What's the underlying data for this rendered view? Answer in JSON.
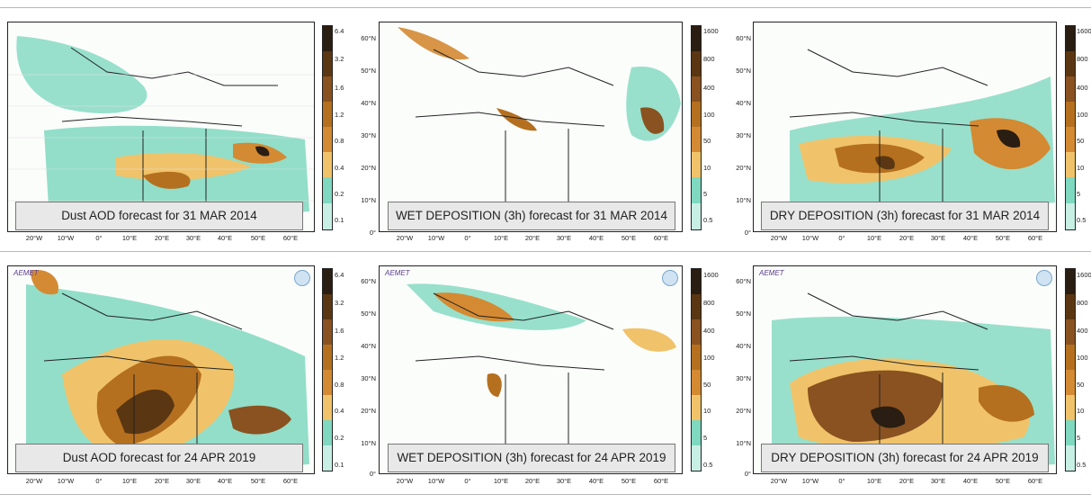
{
  "captions": {
    "p1": "Dust AOD forecast for 31 MAR 2014",
    "p2": "WET DEPOSITION (3h) forecast for 31 MAR 2014",
    "p3": "DRY DEPOSITION (3h) forecast for 31 MAR 2014",
    "p4": "Dust AOD forecast for 24 APR 2019",
    "p5": "WET DEPOSITION (3h) forecast for 24 APR 2019",
    "p6": "DRY DEPOSITION (3h) forecast for 24 APR 2019"
  },
  "x_ticks": [
    "20°W",
    "10°W",
    "0°",
    "10°E",
    "20°E",
    "30°E",
    "40°E",
    "50°E",
    "60°E"
  ],
  "y_ticks": [
    "60°N",
    "50°N",
    "40°N",
    "30°N",
    "20°N",
    "10°N",
    "0°"
  ],
  "aod_scale": [
    "6.4",
    "3.2",
    "1.6",
    "1.2",
    "0.8",
    "0.4",
    "0.2",
    "0.1"
  ],
  "dep_scale": [
    "1600",
    "800",
    "400",
    "100",
    "50",
    "10",
    "5",
    "0.5"
  ],
  "colors": [
    "#2a1d12",
    "#5a3712",
    "#8a5220",
    "#b5701f",
    "#d48a33",
    "#f0c36a",
    "#7fd8c0",
    "#c8efe4"
  ],
  "logos": {
    "aemet": "AEMET",
    "wmo": "WMO"
  }
}
